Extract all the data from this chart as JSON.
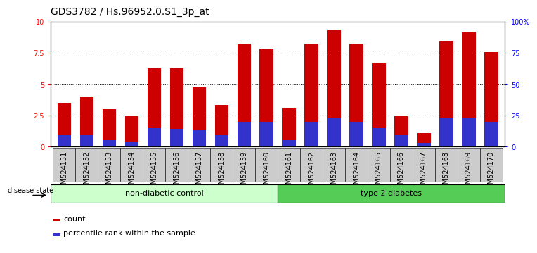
{
  "title": "GDS3782 / Hs.96952.0.S1_3p_at",
  "samples": [
    "GSM524151",
    "GSM524152",
    "GSM524153",
    "GSM524154",
    "GSM524155",
    "GSM524156",
    "GSM524157",
    "GSM524158",
    "GSM524159",
    "GSM524160",
    "GSM524161",
    "GSM524162",
    "GSM524163",
    "GSM524164",
    "GSM524165",
    "GSM524166",
    "GSM524167",
    "GSM524168",
    "GSM524169",
    "GSM524170"
  ],
  "count_values": [
    3.5,
    4.0,
    3.0,
    2.5,
    6.3,
    6.3,
    4.8,
    3.3,
    8.2,
    7.8,
    3.1,
    8.2,
    9.3,
    8.2,
    6.7,
    2.5,
    1.1,
    8.4,
    9.2,
    7.6
  ],
  "percentile_values": [
    0.9,
    1.0,
    0.5,
    0.4,
    1.5,
    1.4,
    1.3,
    0.9,
    2.0,
    2.0,
    0.5,
    2.0,
    2.3,
    2.0,
    1.5,
    1.0,
    0.3,
    2.3,
    2.3,
    2.0
  ],
  "ylim": [
    0,
    10
  ],
  "yticks": [
    0,
    2.5,
    5.0,
    7.5,
    10
  ],
  "ytick_labels_left": [
    "0",
    "2.5",
    "5",
    "7.5",
    "10"
  ],
  "ytick_labels_right": [
    "0",
    "25",
    "50",
    "75",
    "100%"
  ],
  "bar_color_red": "#cc0000",
  "bar_color_blue": "#3333cc",
  "group1_label": "non-diabetic control",
  "group2_label": "type 2 diabetes",
  "group1_color": "#ccffcc",
  "group2_color": "#55cc55",
  "disease_state_label": "disease state",
  "legend_count": "count",
  "legend_percentile": "percentile rank within the sample",
  "xtick_bg_color": "#cccccc",
  "title_fontsize": 10,
  "tick_fontsize": 7,
  "label_fontsize": 8,
  "group_label_fontsize": 8
}
